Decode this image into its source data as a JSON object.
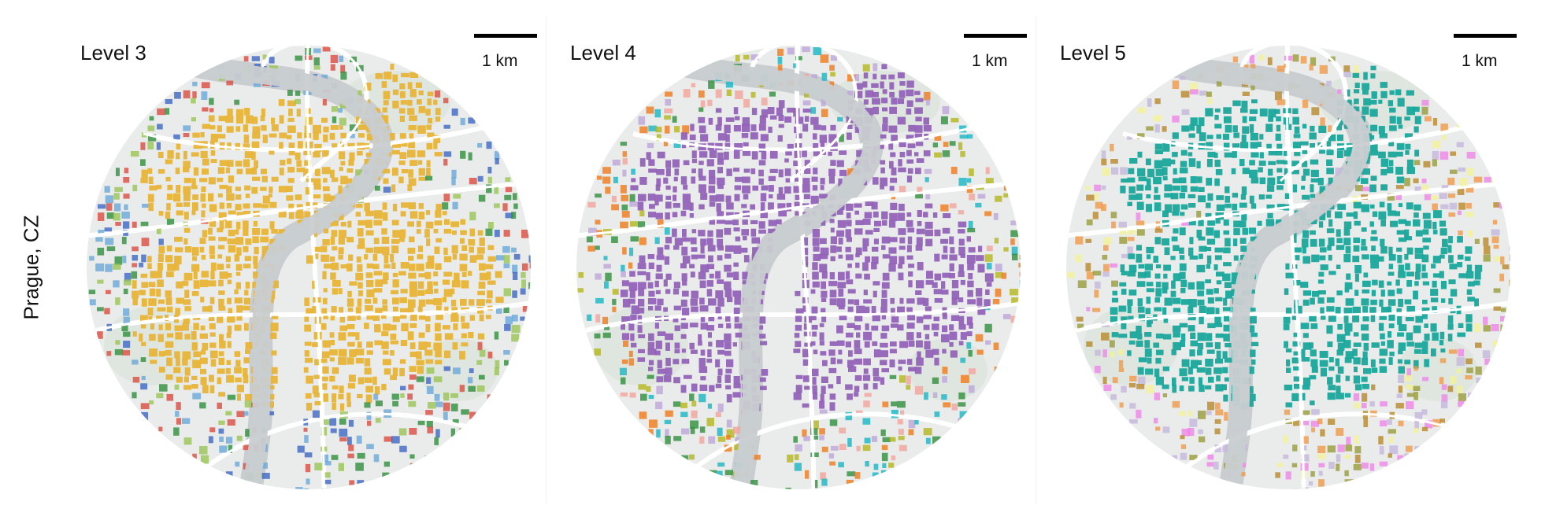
{
  "row_label": "Prague, CZ",
  "colors": {
    "land": "#e9ecea",
    "river": "#c9cdd0",
    "road": "#ffffff",
    "park": "#dfe6df"
  },
  "panels": [
    {
      "title": "Level 3",
      "scale_label": "1 km",
      "dominant_color": "#e8b437",
      "secondary_colors": [
        "#3d67c4",
        "#2f8e3c",
        "#9ac454",
        "#db4c40",
        "#6aa7d8"
      ]
    },
    {
      "title": "Level 4",
      "scale_label": "1 km",
      "dominant_color": "#9263b8",
      "secondary_colors": [
        "#18b6c4",
        "#f2a49b",
        "#f07a1a",
        "#b4b51d",
        "#2f8e3c",
        "#bda6d9"
      ]
    },
    {
      "title": "Level 5",
      "scale_label": "1 km",
      "dominant_color": "#1aa69c",
      "secondary_colors": [
        "#b8892a",
        "#ef86e8",
        "#f3f39a",
        "#c4b8dc",
        "#9a9c3a",
        "#f09a4a"
      ]
    }
  ]
}
